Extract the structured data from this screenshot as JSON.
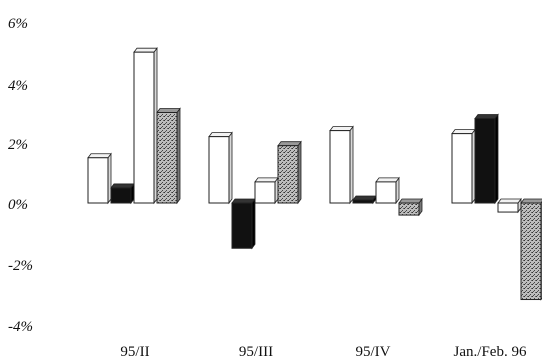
{
  "chart_data": {
    "type": "bar",
    "categories": [
      "95/II",
      "95/III",
      "95/IV",
      "Jan./Feb. 96"
    ],
    "y_ticks": [
      "6%",
      "4%",
      "2%",
      "0%",
      "-2%",
      "-4%"
    ],
    "ylim": [
      -4,
      6
    ],
    "grid": false,
    "legend": "none",
    "series": [
      {
        "values": [
          1.5,
          2.2,
          2.4,
          2.3
        ],
        "pattern": "white"
      },
      {
        "values": [
          0.5,
          -1.5,
          0.1,
          2.8
        ],
        "pattern": "black"
      },
      {
        "values": [
          5.0,
          0.7,
          0.7,
          -0.3
        ],
        "pattern": "white"
      },
      {
        "values": [
          3.0,
          1.9,
          -0.4,
          -3.2
        ],
        "pattern": "stipple"
      }
    ],
    "colors": {
      "white": "#ffffff",
      "black": "#111111",
      "stipple": "#a8a8a8",
      "outline": "#222222"
    }
  }
}
